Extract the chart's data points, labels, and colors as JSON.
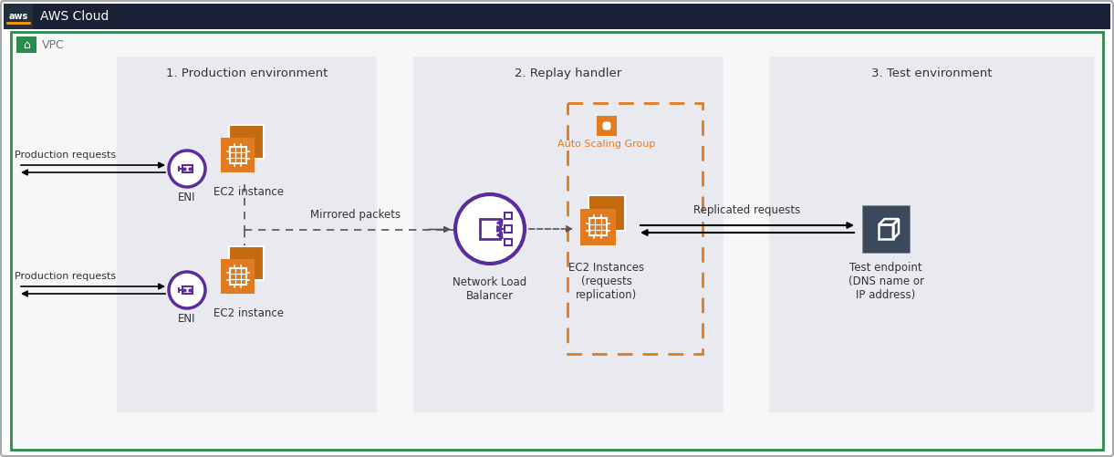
{
  "title": "AWS Cloud",
  "vpc_label": "VPC",
  "section1_title": "1. Production environment",
  "section2_title": "2. Replay handler",
  "section3_title": "3. Test environment",
  "orange": "#e07b20",
  "orange_dark": "#c46a10",
  "purple": "#5a2d9c",
  "dark_gray": "#2d3748",
  "mid_gray": "#4a5568",
  "arrow_color": "#1a1a1a",
  "dashed_color": "#555555",
  "autoscaling_orange": "#e07b20",
  "section_bg": "#e8eaf0",
  "header_bg": "#1a2035",
  "aws_logo_bg": "#232f3e",
  "vpc_green": "#2d8a4e",
  "label_prod_req": "Production requests",
  "label_mirrored": "Mirrored packets",
  "label_replicated": "Replicated requests",
  "label_eni": "ENI",
  "label_ec2_instance": "EC2 instance",
  "label_nlb": "Network Load\nBalancer",
  "label_ec2_replication": "EC2 Instances\n(requests\nreplication)",
  "label_auto_scaling": "Auto Scaling Group",
  "label_test_endpoint": "Test endpoint\n(DNS name or\nIP address)"
}
